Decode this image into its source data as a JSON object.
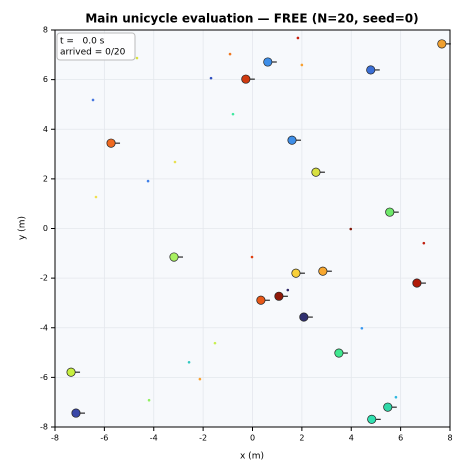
{
  "chart_data": {
    "type": "scatter",
    "title": "Main unicycle evaluation — FREE (N=20, seed=0)",
    "xlabel": "x (m)",
    "ylabel": "y (m)",
    "annotations": [
      "t =   0.0 s",
      "arrived = 0/20"
    ],
    "xlim": [
      -8,
      8
    ],
    "ylim": [
      -8,
      8
    ],
    "xticks": [
      -8,
      -6,
      -4,
      -2,
      0,
      2,
      4,
      6,
      8
    ],
    "yticks": [
      -8,
      -6,
      -4,
      -2,
      0,
      2,
      4,
      6,
      8
    ],
    "grid": true,
    "series": [
      {
        "x": [
          7.67,
          0.62,
          4.79,
          -0.27,
          -5.73,
          1.6,
          2.57,
          5.56,
          -3.18,
          1.76,
          2.85,
          6.66,
          0.34,
          1.07,
          2.08,
          3.5,
          -7.35,
          -7.15,
          5.48,
          4.83
        ],
        "y": [
          7.44,
          6.71,
          6.39,
          6.02,
          3.44,
          3.56,
          2.27,
          0.66,
          -1.15,
          -1.8,
          -1.72,
          -2.2,
          -2.89,
          -2.73,
          -3.57,
          -5.02,
          -5.79,
          -7.44,
          -7.2,
          -7.69
        ],
        "colors": [
          "#f0a030",
          "#3e8ee8",
          "#3b6fd6",
          "#d03a10",
          "#f06a20",
          "#3e8ee8",
          "#d8e040",
          "#6ee86a",
          "#a8f060",
          "#f8d038",
          "#f8a830",
          "#b01a08",
          "#e85818",
          "#901808",
          "#303070",
          "#40e890",
          "#c8f040",
          "#3a48a8",
          "#30d8a8",
          "#30e0b0"
        ]
      },
      {
        "x": [
          1.84,
          -0.91,
          -4.68,
          2.0,
          -1.68,
          -6.46,
          -0.79,
          -3.14,
          -4.23,
          -6.34,
          3.98,
          6.94,
          -0.02,
          1.43,
          4.43,
          -1.52,
          -2.57,
          -2.13,
          -4.19,
          5.81
        ],
        "y": [
          7.68,
          7.03,
          6.87,
          6.59,
          6.06,
          5.18,
          4.61,
          2.68,
          1.91,
          1.27,
          -0.02,
          -0.59,
          -1.15,
          -2.48,
          -4.02,
          -4.62,
          -5.39,
          -6.07,
          -6.92,
          -6.8
        ],
        "colors": [
          "#c82010",
          "#f07820",
          "#d8e040",
          "#f8a030",
          "#3050c0",
          "#4878e0",
          "#40e8a0",
          "#e8e050",
          "#4080e8",
          "#f0e050",
          "#801808",
          "#c02010",
          "#e04010",
          "#302868",
          "#3898f0",
          "#c8f050",
          "#30c8c0",
          "#f8a030",
          "#90f060",
          "#30b8e0"
        ]
      }
    ]
  }
}
